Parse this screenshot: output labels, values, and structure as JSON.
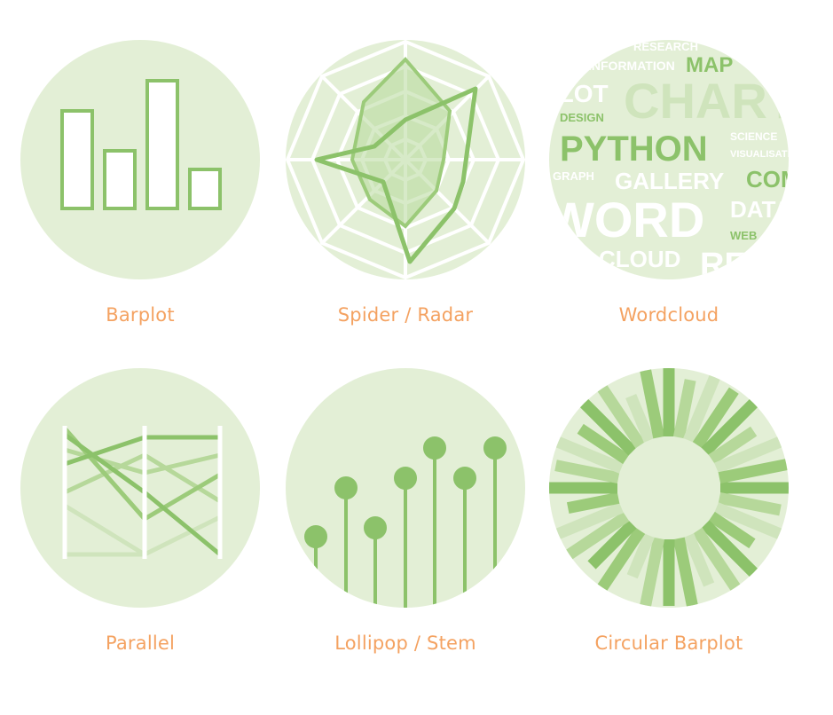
{
  "gallery": {
    "items": [
      {
        "label": "Barplot",
        "icon": "barplot-icon"
      },
      {
        "label": "Spider / Radar",
        "icon": "radar-icon"
      },
      {
        "label": "Wordcloud",
        "icon": "wordcloud-icon"
      },
      {
        "label": "Parallel",
        "icon": "parallel-icon"
      },
      {
        "label": "Lollipop / Stem",
        "icon": "lollipop-icon"
      },
      {
        "label": "Circular Barplot",
        "icon": "circular-barplot-icon"
      }
    ],
    "wordcloud_words": {
      "research": "RESEARCH",
      "information": "INFORMATION",
      "map": "MAP",
      "plot": "PLOT",
      "chart": "CHART",
      "design": "DESIGN",
      "python": "PYTHON",
      "science": "SCIENCE",
      "visualisation": "VISUALISATION",
      "graph": "GRAPH",
      "gallery": "GALLERY",
      "com": "COM",
      "word": "WORD",
      "data": "DATA",
      "web": "WEB",
      "cloud": "CLOUD",
      "re": "RE"
    },
    "colors": {
      "circle_bg": "#e3efd6",
      "accent_green": "#8cc26a",
      "light_green": "#b6d89a",
      "label_orange": "#f4a261"
    }
  }
}
